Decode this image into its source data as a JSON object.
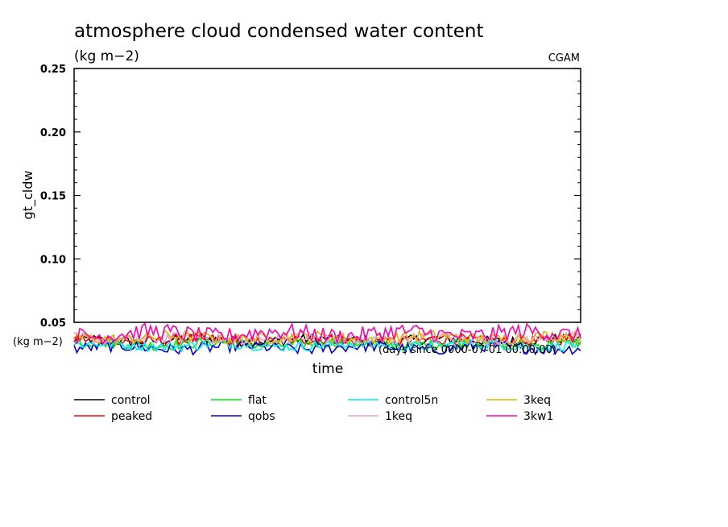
{
  "chart_data": {
    "type": "line",
    "title": "atmosphere cloud condensed water content",
    "subtitle": "(kg m−2)",
    "source_label": "CGAM",
    "ylabel": "gt_cldw",
    "xlabel": "time",
    "x_units_label": "(days since 0000-07-01 00:00:00)",
    "y_units_label": "(kg m−2)",
    "ylim": [
      0.05,
      0.25
    ],
    "y_ticks": [
      0.05,
      0.1,
      0.15,
      0.2,
      0.25
    ],
    "y_tick_labels": [
      "0.05",
      "0.10",
      "0.15",
      "0.20",
      "0.25"
    ],
    "legend_position": "bottom",
    "series": [
      {
        "name": "control",
        "color": "#000000",
        "mean": 0.036,
        "amp": 0.004
      },
      {
        "name": "peaked",
        "color": "#ff0000",
        "mean": 0.0355,
        "amp": 0.0045
      },
      {
        "name": "flat",
        "color": "#00ee00",
        "mean": 0.033,
        "amp": 0.004
      },
      {
        "name": "qobs",
        "color": "#0000dd",
        "mean": 0.03,
        "amp": 0.0045
      },
      {
        "name": "control5n",
        "color": "#00eeee",
        "mean": 0.032,
        "amp": 0.004
      },
      {
        "name": "1keq",
        "color": "#e8a0d8",
        "mean": 0.037,
        "amp": 0.004
      },
      {
        "name": "3keq",
        "color": "#e8b000",
        "mean": 0.038,
        "amp": 0.0045
      },
      {
        "name": "3kw1",
        "color": "#ff00aa",
        "mean": 0.041,
        "amp": 0.0065
      }
    ]
  }
}
